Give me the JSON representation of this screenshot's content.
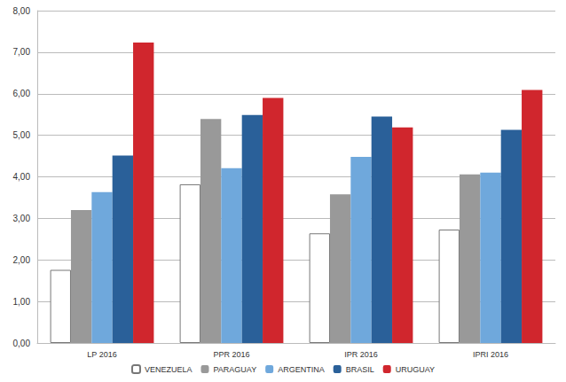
{
  "chart_data": {
    "type": "bar",
    "categories": [
      "LP 2016",
      "PPR 2016",
      "IPR 2016",
      "IPRI 2016"
    ],
    "series": [
      {
        "name": "VENEZUELA",
        "color": "#ffffff",
        "values": [
          1.76,
          3.82,
          2.64,
          2.73
        ]
      },
      {
        "name": "PARAGUAY",
        "color": "#999999",
        "values": [
          3.2,
          5.39,
          3.58,
          4.06
        ]
      },
      {
        "name": "ARGENTINA",
        "color": "#6fa8dc",
        "values": [
          3.63,
          4.21,
          4.48,
          4.1
        ]
      },
      {
        "name": "BRASIL",
        "color": "#2a6099",
        "values": [
          4.51,
          5.49,
          5.45,
          5.13
        ]
      },
      {
        "name": "URUGUAY",
        "color": "#d0262d",
        "values": [
          7.23,
          5.9,
          5.19,
          6.09
        ]
      }
    ],
    "ylim": [
      0,
      8
    ],
    "yticks": [
      {
        "value": 0,
        "label": "0,00"
      },
      {
        "value": 1,
        "label": "1,00"
      },
      {
        "value": 2,
        "label": "2,00"
      },
      {
        "value": 3,
        "label": "3,00"
      },
      {
        "value": 4,
        "label": "4,00"
      },
      {
        "value": 5,
        "label": "5,00"
      },
      {
        "value": 6,
        "label": "6,00"
      },
      {
        "value": 7,
        "label": "7,00"
      },
      {
        "value": 8,
        "label": "8,00"
      }
    ],
    "grid": true,
    "legend": "bottom"
  }
}
